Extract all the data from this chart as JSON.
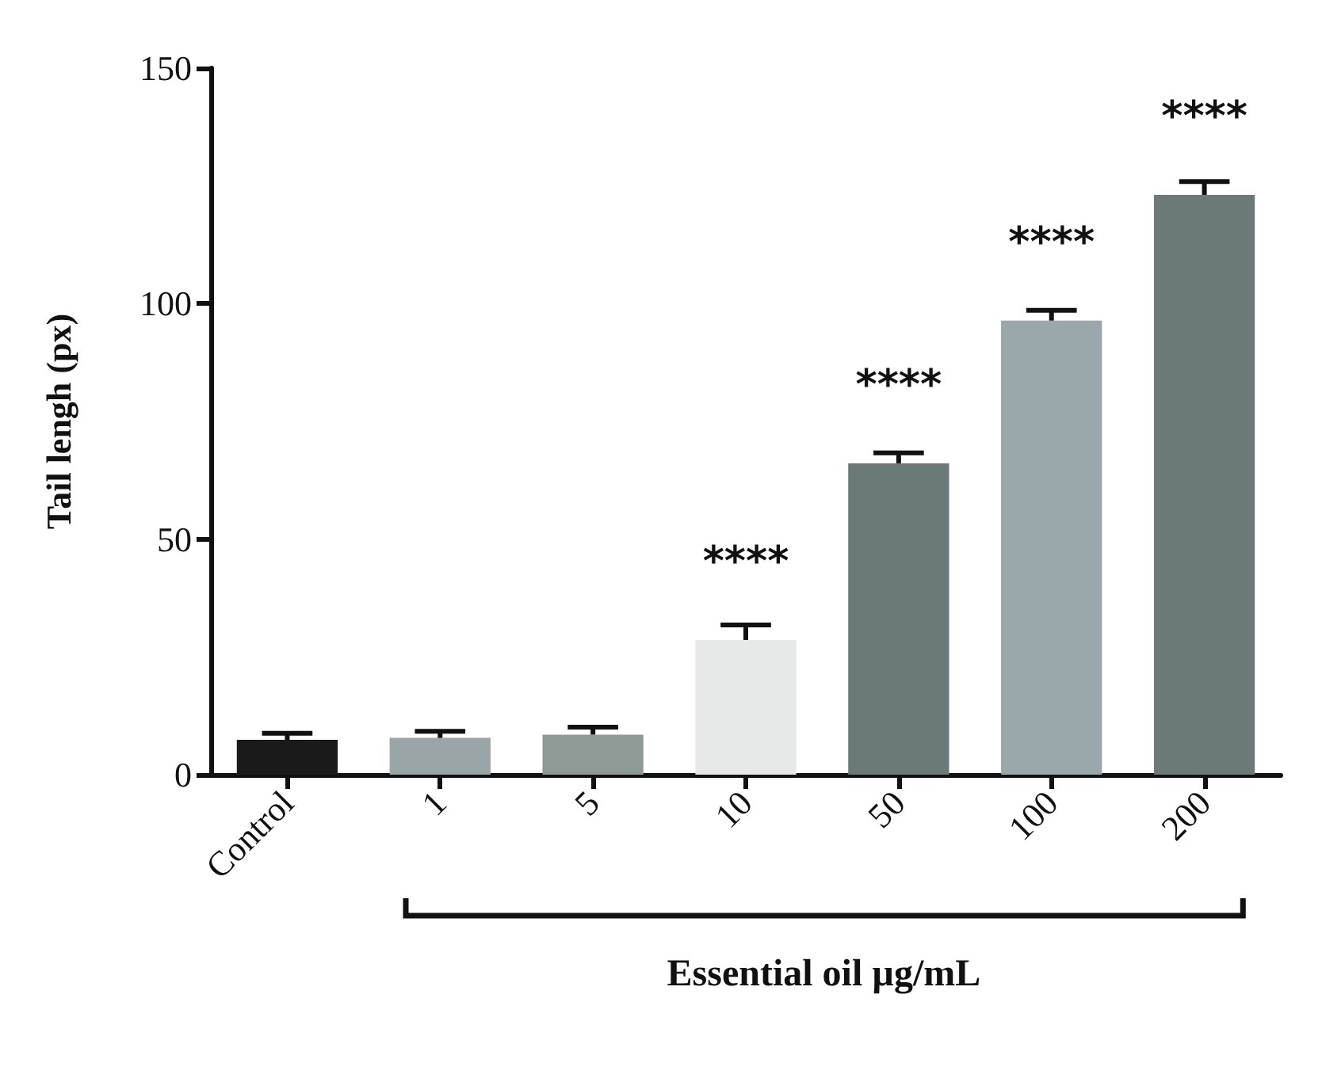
{
  "chart_data": {
    "type": "bar",
    "ylabel": "Tail lengh (px)",
    "xlabel": "Essential oil µg/mL",
    "categories": [
      "Control",
      "1",
      "5",
      "10",
      "50",
      "100",
      "200"
    ],
    "values": [
      7.4,
      7.8,
      8.5,
      28.6,
      66.1,
      96.4,
      123.1
    ],
    "colors": [
      "#1a1a1a",
      "#9aa5a8",
      "#8e9a96",
      "#e6e9e8",
      "#6b7a78",
      "#9aa7ab",
      "#6b7a78"
    ],
    "errors": [
      [
        7.4,
        8.8
      ],
      [
        7.8,
        9.2
      ],
      [
        8.5,
        10.1
      ],
      [
        28.6,
        31.8
      ],
      [
        66.1,
        68.3
      ],
      [
        96.4,
        98.6
      ],
      [
        123.1,
        125.9
      ]
    ],
    "ylim": [
      0,
      150
    ],
    "yticks": [
      0,
      50,
      100,
      150
    ],
    "grid": false,
    "annotations": [
      {
        "text": "****",
        "x": "10",
        "y": 28.6
      },
      {
        "text": "****",
        "x": "50",
        "y": 66.1
      },
      {
        "text": "****",
        "x": "100",
        "y": 96.4
      },
      {
        "text": "****",
        "x": "200",
        "y": 123.1
      }
    ]
  }
}
